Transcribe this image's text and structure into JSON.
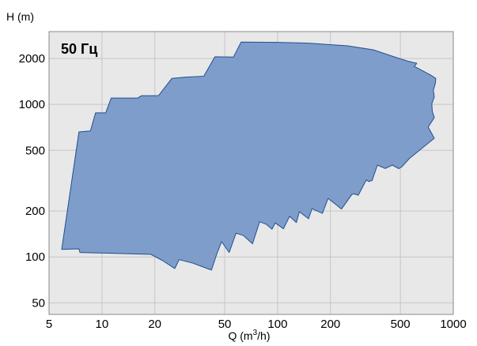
{
  "chart_data": {
    "type": "area",
    "title": "50 Гц",
    "xlabel": "Q (m³/h)",
    "ylabel": "H (m)",
    "x_scale": "log",
    "y_scale": "log",
    "xlim": [
      5,
      1000
    ],
    "ylim": [
      42,
      3000
    ],
    "x_ticks": [
      {
        "value": 5,
        "label": "5"
      },
      {
        "value": 10,
        "label": "10"
      },
      {
        "value": 20,
        "label": "20"
      },
      {
        "value": 50,
        "label": "50"
      },
      {
        "value": 100,
        "label": "100"
      },
      {
        "value": 200,
        "label": "200"
      },
      {
        "value": 500,
        "label": "500"
      },
      {
        "value": 1000,
        "label": "1000"
      }
    ],
    "y_ticks": [
      {
        "value": 50,
        "label": "50"
      },
      {
        "value": 100,
        "label": "100"
      },
      {
        "value": 200,
        "label": "200"
      },
      {
        "value": 500,
        "label": "500"
      },
      {
        "value": 1000,
        "label": "1000"
      },
      {
        "value": 2000,
        "label": "2000"
      }
    ],
    "grid": true,
    "colors": {
      "fill": "#7f9dca",
      "stroke": "#1f4f8f",
      "plot_background": "#e8e8e8",
      "grid": "#c6c6c6"
    },
    "series": [
      {
        "points": [
          [
            5.9,
            112
          ],
          [
            7.4,
            113
          ],
          [
            7.5,
            107
          ],
          [
            19,
            104
          ],
          [
            22,
            95
          ],
          [
            26,
            84
          ],
          [
            27.5,
            96
          ],
          [
            33,
            91
          ],
          [
            42,
            82
          ],
          [
            45,
            104
          ],
          [
            48,
            126
          ],
          [
            53,
            107
          ],
          [
            58,
            143
          ],
          [
            64,
            138
          ],
          [
            72,
            122
          ],
          [
            79,
            170
          ],
          [
            86,
            164
          ],
          [
            93,
            152
          ],
          [
            97,
            167
          ],
          [
            108,
            153
          ],
          [
            117,
            185
          ],
          [
            128,
            168
          ],
          [
            133,
            198
          ],
          [
            150,
            178
          ],
          [
            157,
            207
          ],
          [
            180,
            193
          ],
          [
            194,
            242
          ],
          [
            231,
            206
          ],
          [
            265,
            257
          ],
          [
            272,
            259
          ],
          [
            288,
            254
          ],
          [
            320,
            320
          ],
          [
            330,
            312
          ],
          [
            345,
            317
          ],
          [
            370,
            400
          ],
          [
            410,
            380
          ],
          [
            450,
            400
          ],
          [
            490,
            379
          ],
          [
            510,
            390
          ],
          [
            560,
            440
          ],
          [
            780,
            600
          ],
          [
            720,
            710
          ],
          [
            780,
            820
          ],
          [
            760,
            900
          ],
          [
            755,
            1010
          ],
          [
            780,
            1120
          ],
          [
            770,
            1240
          ],
          [
            790,
            1370
          ],
          [
            795,
            1480
          ],
          [
            740,
            1560
          ],
          [
            620,
            1740
          ],
          [
            600,
            1770
          ],
          [
            620,
            1860
          ],
          [
            550,
            1920
          ],
          [
            460,
            2050
          ],
          [
            350,
            2280
          ],
          [
            250,
            2420
          ],
          [
            150,
            2520
          ],
          [
            100,
            2550
          ],
          [
            62,
            2560
          ],
          [
            56,
            2040
          ],
          [
            44,
            2050
          ],
          [
            38,
            1530
          ],
          [
            30,
            1510
          ],
          [
            25,
            1480
          ],
          [
            21,
            1140
          ],
          [
            16.8,
            1140
          ],
          [
            16,
            1100
          ],
          [
            11.3,
            1100
          ],
          [
            10.5,
            880
          ],
          [
            9.2,
            880
          ],
          [
            8.6,
            670
          ],
          [
            7.4,
            660
          ],
          [
            5.9,
            112
          ]
        ]
      }
    ]
  }
}
